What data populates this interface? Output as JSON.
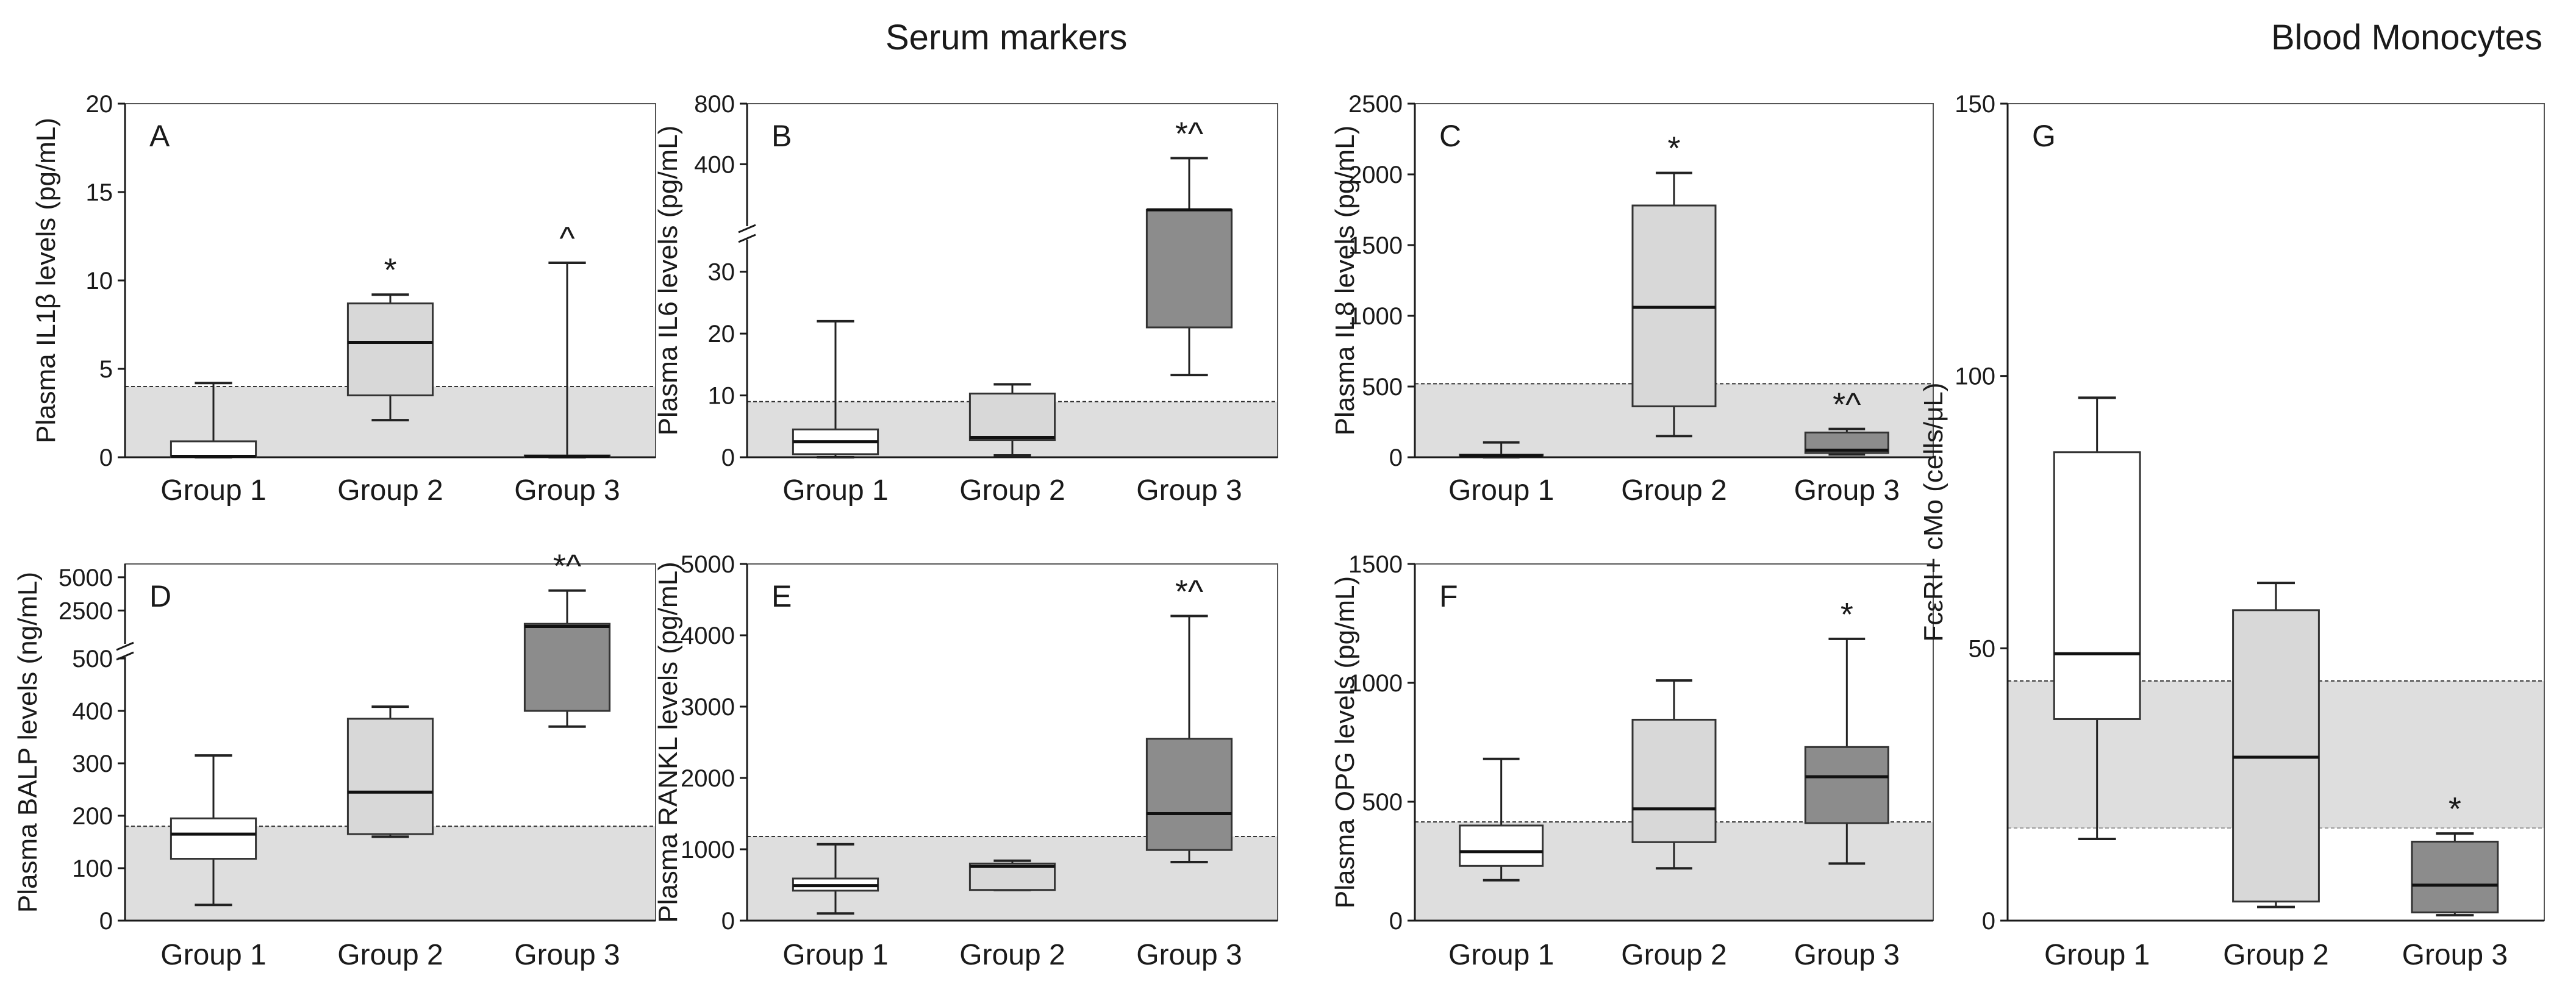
{
  "figure": {
    "section_titles": {
      "serum": "Serum markers",
      "monocytes": "Blood Monocytes"
    },
    "colors": {
      "g1_fill": "#ffffff",
      "g2_fill": "#d8d8d8",
      "g3_fill": "#8c8c8c",
      "ref_band": "#dedede",
      "axis": "#1a1a1a"
    }
  },
  "chart_data": [
    {
      "id": "A",
      "type": "box",
      "panel_label": "A",
      "ylabel": "Plasma IL1β levels (pg/mL)",
      "categories": [
        "Group 1",
        "Group 2",
        "Group 3"
      ],
      "ylim": [
        0,
        20
      ],
      "yticks": [
        0,
        5,
        10,
        15,
        20
      ],
      "yticklabels": [
        "0",
        "5",
        "10",
        "15",
        "20"
      ],
      "reference_band": [
        0,
        4
      ],
      "boxes": [
        {
          "group": "Group 1",
          "min": 0,
          "q1": 0,
          "median": 0.05,
          "q3": 0.9,
          "max": 4.2,
          "sig": ""
        },
        {
          "group": "Group 2",
          "min": 2.1,
          "q1": 3.5,
          "median": 6.5,
          "q3": 8.7,
          "max": 9.2,
          "sig": "*"
        },
        {
          "group": "Group 3",
          "min": 0,
          "q1": 0,
          "median": 0.05,
          "q3": 0.1,
          "max": 11,
          "sig": "^"
        }
      ]
    },
    {
      "id": "B",
      "type": "box",
      "panel_label": "B",
      "ylabel": "Plasma IL6 levels (pg/mL)",
      "categories": [
        "Group 1",
        "Group 2",
        "Group 3"
      ],
      "axis_break": {
        "lower": [
          0,
          35
        ],
        "upper": [
          35,
          800
        ]
      },
      "yticks": [
        0,
        10,
        20,
        30,
        400,
        800
      ],
      "yticklabels": [
        "0",
        "10",
        "20",
        "30",
        "400",
        "800"
      ],
      "reference_band": [
        0,
        9
      ],
      "boxes": [
        {
          "group": "Group 1",
          "min": 0,
          "q1": 0.5,
          "median": 2.5,
          "q3": 4.5,
          "max": 22,
          "sig": ""
        },
        {
          "group": "Group 2",
          "min": 0.3,
          "q1": 2.8,
          "median": 3.2,
          "q3": 10.3,
          "max": 11.8,
          "sig": ""
        },
        {
          "group": "Group 3",
          "min": 13.3,
          "q1": 21,
          "median": 99,
          "q3": 99,
          "max": 440,
          "sig": "*^"
        }
      ]
    },
    {
      "id": "C",
      "type": "box",
      "panel_label": "C",
      "ylabel": "Plasma IL8 levels (pg/mL)",
      "categories": [
        "Group 1",
        "Group 2",
        "Group 3"
      ],
      "ylim": [
        0,
        2500
      ],
      "yticks": [
        0,
        500,
        1000,
        1500,
        2000,
        2500
      ],
      "yticklabels": [
        "0",
        "500",
        "1000",
        "1500",
        "2000",
        "2500"
      ],
      "reference_band": [
        0,
        520
      ],
      "boxes": [
        {
          "group": "Group 1",
          "min": 0,
          "q1": 5,
          "median": 10,
          "q3": 18,
          "max": 105,
          "sig": ""
        },
        {
          "group": "Group 2",
          "min": 150,
          "q1": 360,
          "median": 1060,
          "q3": 1780,
          "max": 2010,
          "sig": "*"
        },
        {
          "group": "Group 3",
          "min": 20,
          "q1": 30,
          "median": 50,
          "q3": 175,
          "max": 200,
          "sig": "*^"
        }
      ]
    },
    {
      "id": "D",
      "type": "box",
      "panel_label": "D",
      "ylabel": "Plasma BALP levels (ng/mL)",
      "categories": [
        "Group 1",
        "Group 2",
        "Group 3"
      ],
      "axis_break": {
        "lower": [
          0,
          500
        ],
        "upper": [
          500,
          6000
        ]
      },
      "yticks": [
        0,
        100,
        200,
        300,
        400,
        500,
        2500,
        5000
      ],
      "yticklabels": [
        "0",
        "100",
        "200",
        "300",
        "400",
        "500",
        "2500",
        "5000"
      ],
      "reference_band": [
        0,
        180
      ],
      "boxes": [
        {
          "group": "Group 1",
          "min": 30,
          "q1": 118,
          "median": 165,
          "q3": 195,
          "max": 315,
          "sig": ""
        },
        {
          "group": "Group 2",
          "min": 160,
          "q1": 165,
          "median": 245,
          "q3": 385,
          "max": 408,
          "sig": ""
        },
        {
          "group": "Group 3",
          "min": 370,
          "q1": 400,
          "median": 1300,
          "q3": 1500,
          "max": 4000,
          "sig": "*^"
        }
      ]
    },
    {
      "id": "E",
      "type": "box",
      "panel_label": "E",
      "ylabel": "Plasma RANKL levels (pg/mL)",
      "categories": [
        "Group 1",
        "Group 2",
        "Group 3"
      ],
      "ylim": [
        0,
        5000
      ],
      "yticks": [
        0,
        1000,
        2000,
        3000,
        4000,
        5000
      ],
      "yticklabels": [
        "0",
        "1000",
        "2000",
        "3000",
        "4000",
        "5000"
      ],
      "reference_band": [
        0,
        1180
      ],
      "boxes": [
        {
          "group": "Group 1",
          "min": 100,
          "q1": 420,
          "median": 490,
          "q3": 590,
          "max": 1070,
          "sig": ""
        },
        {
          "group": "Group 2",
          "min": 430,
          "q1": 430,
          "median": 760,
          "q3": 800,
          "max": 840,
          "sig": ""
        },
        {
          "group": "Group 3",
          "min": 820,
          "q1": 990,
          "median": 1500,
          "q3": 2550,
          "max": 4270,
          "sig": "*^"
        }
      ]
    },
    {
      "id": "F",
      "type": "box",
      "panel_label": "F",
      "ylabel": "Plasma OPG levels (pg/mL)",
      "categories": [
        "Group 1",
        "Group 2",
        "Group 3"
      ],
      "ylim": [
        0,
        1500
      ],
      "yticks": [
        0,
        500,
        1000,
        1500
      ],
      "yticklabels": [
        "0",
        "500",
        "1000",
        "1500"
      ],
      "reference_band": [
        0,
        415
      ],
      "boxes": [
        {
          "group": "Group 1",
          "min": 170,
          "q1": 230,
          "median": 290,
          "q3": 400,
          "max": 680,
          "sig": ""
        },
        {
          "group": "Group 2",
          "min": 220,
          "q1": 330,
          "median": 470,
          "q3": 845,
          "max": 1010,
          "sig": ""
        },
        {
          "group": "Group 3",
          "min": 240,
          "q1": 410,
          "median": 605,
          "q3": 730,
          "max": 1185,
          "sig": "*"
        }
      ]
    },
    {
      "id": "G",
      "type": "box",
      "panel_label": "G",
      "ylabel": "FcεRI+ cMo (cells/μL)",
      "categories": [
        "Group 1",
        "Group 2",
        "Group 3"
      ],
      "ylim": [
        0,
        150
      ],
      "yticks": [
        0,
        50,
        100,
        150
      ],
      "yticklabels": [
        "0",
        "50",
        "100",
        "150"
      ],
      "reference_band": [
        17,
        44
      ],
      "boxes": [
        {
          "group": "Group 1",
          "min": 15,
          "q1": 37,
          "median": 49,
          "q3": 86,
          "max": 96,
          "sig": ""
        },
        {
          "group": "Group 2",
          "min": 2.5,
          "q1": 3.5,
          "median": 30,
          "q3": 57,
          "max": 62,
          "sig": ""
        },
        {
          "group": "Group 3",
          "min": 1,
          "q1": 1.5,
          "median": 6.5,
          "q3": 14.5,
          "max": 16,
          "sig": "*"
        }
      ]
    }
  ]
}
